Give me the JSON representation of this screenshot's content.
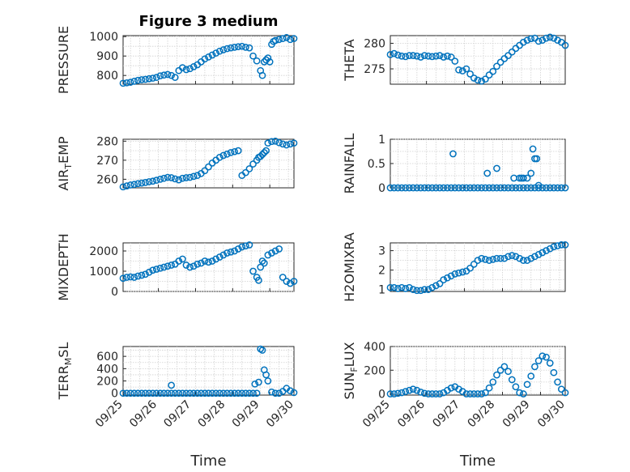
{
  "colors": {
    "marker": "#0072BD",
    "axis": "#262626",
    "grid": "#d0d0d0"
  },
  "chart_data": [
    {
      "type": "scatter",
      "title": "Figure 3 medium",
      "ylabel": "PRESSURE",
      "xlabel": "",
      "ylim": [
        755,
        1005
      ],
      "yticks": [
        800,
        900,
        1000
      ],
      "xlim": [
        0.3,
        4.9
      ],
      "grid": true,
      "xticklabels": [],
      "x": [
        0.3,
        0.4,
        0.5,
        0.6,
        0.7,
        0.8,
        0.9,
        1.0,
        1.1,
        1.2,
        1.3,
        1.4,
        1.5,
        1.6,
        1.7,
        1.8,
        1.9,
        2.0,
        2.1,
        2.2,
        2.3,
        2.4,
        2.5,
        2.6,
        2.7,
        2.8,
        2.9,
        3.0,
        3.1,
        3.2,
        3.3,
        3.4,
        3.5,
        3.6,
        3.7,
        3.8,
        3.9,
        4.0,
        4.05,
        4.1,
        4.15,
        4.2,
        4.25,
        4.3,
        4.35,
        4.4,
        4.5,
        4.6,
        4.7,
        4.8,
        4.9
      ],
      "y": [
        760,
        762,
        765,
        770,
        775,
        778,
        780,
        783,
        786,
        790,
        798,
        802,
        805,
        800,
        790,
        825,
        840,
        830,
        835,
        845,
        855,
        870,
        885,
        895,
        905,
        915,
        925,
        932,
        938,
        942,
        945,
        948,
        950,
        945,
        942,
        900,
        875,
        825,
        800,
        870,
        880,
        890,
        870,
        960,
        975,
        980,
        985,
        990,
        995,
        985,
        990
      ]
    },
    {
      "type": "scatter",
      "title": "",
      "ylabel": "THETA",
      "xlabel": "",
      "ylim": [
        272,
        281.5
      ],
      "yticks": [
        275,
        280
      ],
      "xlim": [
        0.3,
        4.9
      ],
      "grid": true,
      "xticklabels": [],
      "x": [
        0.3,
        0.4,
        0.5,
        0.6,
        0.7,
        0.8,
        0.9,
        1.0,
        1.1,
        1.2,
        1.3,
        1.4,
        1.5,
        1.6,
        1.7,
        1.8,
        1.9,
        2.0,
        2.1,
        2.2,
        2.3,
        2.4,
        2.5,
        2.6,
        2.7,
        2.8,
        2.9,
        3.0,
        3.1,
        3.2,
        3.3,
        3.4,
        3.5,
        3.6,
        3.7,
        3.8,
        3.9,
        4.0,
        4.1,
        4.2,
        4.3,
        4.4,
        4.5,
        4.6,
        4.7,
        4.8,
        4.9
      ],
      "y": [
        277.8,
        278.0,
        277.7,
        277.5,
        277.4,
        277.6,
        277.6,
        277.5,
        277.3,
        277.6,
        277.5,
        277.4,
        277.5,
        277.6,
        277.3,
        277.5,
        277.3,
        276.5,
        274.8,
        274.6,
        275.0,
        274.0,
        273.2,
        272.8,
        272.6,
        273.0,
        273.8,
        274.5,
        275.5,
        276.3,
        277.0,
        277.6,
        278.3,
        279.0,
        279.6,
        280.2,
        280.6,
        280.9,
        281.0,
        280.4,
        280.6,
        281.0,
        281.2,
        281.0,
        280.6,
        280.2,
        279.6
      ]
    },
    {
      "type": "scatter",
      "title": "",
      "ylabel": "AIR_TEMP",
      "xlabel": "",
      "ylim": [
        255.5,
        281
      ],
      "yticks": [
        260,
        270,
        280
      ],
      "xlim": [
        0.3,
        4.9
      ],
      "grid": true,
      "xticklabels": [],
      "x": [
        0.3,
        0.4,
        0.5,
        0.6,
        0.7,
        0.8,
        0.9,
        1.0,
        1.1,
        1.2,
        1.3,
        1.4,
        1.5,
        1.6,
        1.7,
        1.8,
        1.9,
        2.0,
        2.1,
        2.2,
        2.3,
        2.4,
        2.5,
        2.6,
        2.7,
        2.8,
        2.9,
        3.0,
        3.1,
        3.2,
        3.3,
        3.4,
        3.5,
        3.6,
        3.7,
        3.8,
        3.9,
        3.95,
        4.0,
        4.05,
        4.1,
        4.15,
        4.2,
        4.3,
        4.4,
        4.5,
        4.6,
        4.7,
        4.8,
        4.9
      ],
      "y": [
        256,
        256.5,
        257,
        257.3,
        257.7,
        258,
        258.3,
        258.7,
        259,
        259.5,
        260,
        260.5,
        261,
        260.8,
        260.2,
        259.7,
        260.5,
        260.8,
        261,
        261.5,
        262,
        263,
        264.5,
        266.5,
        268.5,
        270,
        271.5,
        272.5,
        273.2,
        274,
        274.5,
        275,
        262,
        263.5,
        265.5,
        268,
        270,
        271.5,
        272,
        273,
        274,
        275,
        279,
        279.8,
        280,
        279.2,
        278.5,
        278,
        278.5,
        279
      ]
    },
    {
      "type": "scatter",
      "title": "",
      "ylabel": "RAINFALL",
      "xlabel": "",
      "ylim": [
        0,
        1
      ],
      "yticks": [
        0,
        0.5,
        1
      ],
      "xlim": [
        0.3,
        4.9
      ],
      "grid": true,
      "xticklabels": [],
      "x": [
        0.3,
        0.4,
        0.5,
        0.6,
        0.7,
        0.8,
        0.9,
        1.0,
        1.1,
        1.2,
        1.3,
        1.4,
        1.5,
        1.6,
        1.7,
        1.8,
        1.9,
        2.0,
        2.1,
        2.2,
        2.3,
        2.4,
        2.5,
        2.6,
        2.7,
        2.8,
        2.9,
        3.0,
        3.1,
        3.2,
        3.3,
        3.4,
        3.5,
        3.6,
        3.7,
        3.8,
        3.9,
        4.0,
        4.1,
        4.2,
        4.3,
        4.4,
        4.5,
        4.6,
        4.7,
        4.8,
        4.9,
        1.95,
        2.85,
        3.1,
        3.55,
        3.7,
        3.8,
        3.9,
        4.0,
        4.05,
        4.1,
        4.15,
        4.2,
        3.75
      ],
      "y": [
        0,
        0,
        0,
        0,
        0,
        0,
        0,
        0,
        0,
        0,
        0,
        0,
        0,
        0,
        0,
        0,
        0,
        0,
        0,
        0,
        0,
        0,
        0,
        0,
        0,
        0,
        0,
        0,
        0,
        0,
        0,
        0,
        0,
        0,
        0,
        0,
        0,
        0,
        0,
        0,
        0,
        0,
        0,
        0,
        0,
        0,
        0,
        0.7,
        0.3,
        0.4,
        0.2,
        0.2,
        0.2,
        0.2,
        0.3,
        0.8,
        0.6,
        0.6,
        0.05,
        0.2
      ]
    },
    {
      "type": "scatter",
      "title": "",
      "ylabel": "MIXDEPTH",
      "xlabel": "",
      "ylim": [
        0,
        2400
      ],
      "yticks": [
        0,
        1000,
        2000
      ],
      "xlim": [
        0.3,
        4.9
      ],
      "grid": true,
      "xticklabels": [],
      "x": [
        0.3,
        0.4,
        0.5,
        0.6,
        0.7,
        0.8,
        0.9,
        1.0,
        1.1,
        1.2,
        1.3,
        1.4,
        1.5,
        1.6,
        1.7,
        1.8,
        1.9,
        2.0,
        2.1,
        2.2,
        2.3,
        2.4,
        2.5,
        2.6,
        2.7,
        2.8,
        2.9,
        3.0,
        3.1,
        3.2,
        3.3,
        3.4,
        3.5,
        3.6,
        3.7,
        3.8,
        3.9,
        3.95,
        4.0,
        4.05,
        4.1,
        4.2,
        4.3,
        4.4,
        4.5,
        4.6,
        4.7,
        4.8,
        4.9
      ],
      "y": [
        650,
        700,
        720,
        700,
        760,
        800,
        850,
        950,
        1050,
        1100,
        1150,
        1200,
        1250,
        1300,
        1350,
        1500,
        1600,
        1300,
        1200,
        1250,
        1350,
        1400,
        1500,
        1450,
        1500,
        1600,
        1700,
        1800,
        1900,
        1950,
        2000,
        2100,
        2200,
        2250,
        2300,
        1000,
        700,
        550,
        1200,
        1500,
        1400,
        1800,
        1900,
        2000,
        2100,
        700,
        500,
        400,
        500
      ]
    },
    {
      "type": "scatter",
      "title": "",
      "ylabel": "H2OMIXRA",
      "xlabel": "",
      "ylim": [
        0.9,
        3.4
      ],
      "yticks": [
        1,
        2,
        3
      ],
      "xlim": [
        0.3,
        4.9
      ],
      "grid": true,
      "xticklabels": [],
      "x": [
        0.3,
        0.4,
        0.5,
        0.6,
        0.7,
        0.8,
        0.9,
        1.0,
        1.1,
        1.2,
        1.3,
        1.4,
        1.5,
        1.6,
        1.7,
        1.8,
        1.9,
        2.0,
        2.1,
        2.2,
        2.3,
        2.4,
        2.5,
        2.6,
        2.7,
        2.8,
        2.9,
        3.0,
        3.1,
        3.2,
        3.3,
        3.4,
        3.5,
        3.6,
        3.7,
        3.8,
        3.9,
        4.0,
        4.1,
        4.2,
        4.3,
        4.4,
        4.5,
        4.6,
        4.7,
        4.8,
        4.9
      ],
      "y": [
        1.1,
        1.1,
        1.05,
        1.1,
        1.05,
        1.1,
        1.0,
        0.95,
        0.95,
        1.0,
        1.0,
        1.1,
        1.2,
        1.3,
        1.5,
        1.6,
        1.7,
        1.8,
        1.85,
        1.9,
        1.95,
        2.1,
        2.3,
        2.5,
        2.6,
        2.55,
        2.5,
        2.55,
        2.6,
        2.6,
        2.6,
        2.7,
        2.75,
        2.7,
        2.6,
        2.5,
        2.5,
        2.6,
        2.7,
        2.8,
        2.9,
        3.0,
        3.1,
        3.2,
        3.25,
        3.3,
        3.3
      ]
    },
    {
      "type": "scatter",
      "title": "",
      "ylabel": "TERR_MSL",
      "xlabel": "Time",
      "ylim": [
        -30,
        760
      ],
      "yticks": [
        0,
        200,
        400,
        600
      ],
      "xlim": [
        0.3,
        4.9
      ],
      "grid": true,
      "xticklabels": [
        "09/25",
        "09/26",
        "09/27",
        "09/28",
        "09/29",
        "09/30"
      ],
      "x": [
        0.3,
        0.4,
        0.5,
        0.6,
        0.7,
        0.8,
        0.9,
        1.0,
        1.1,
        1.2,
        1.3,
        1.4,
        1.5,
        1.6,
        1.7,
        1.8,
        1.9,
        2.0,
        2.1,
        2.2,
        2.3,
        2.4,
        2.5,
        2.6,
        2.7,
        2.8,
        2.9,
        3.0,
        3.1,
        3.2,
        3.3,
        3.4,
        3.5,
        3.6,
        3.7,
        3.8,
        3.9,
        1.6,
        3.85,
        3.95,
        4.0,
        4.05,
        4.1,
        4.15,
        4.2,
        4.3,
        4.4,
        4.5,
        4.6,
        4.7,
        4.8,
        4.9
      ],
      "y": [
        0,
        0,
        0,
        0,
        0,
        0,
        0,
        0,
        0,
        0,
        0,
        0,
        0,
        0,
        0,
        0,
        0,
        0,
        0,
        0,
        0,
        0,
        0,
        0,
        0,
        0,
        0,
        0,
        0,
        0,
        0,
        0,
        0,
        0,
        0,
        0,
        0,
        130,
        150,
        180,
        720,
        700,
        380,
        300,
        200,
        20,
        0,
        0,
        30,
        80,
        40,
        10
      ]
    },
    {
      "type": "scatter",
      "title": "",
      "ylabel": "SUN_FLUX",
      "xlabel": "Time",
      "ylim": [
        -10,
        400
      ],
      "yticks": [
        0,
        200,
        400
      ],
      "xlim": [
        0.3,
        4.9
      ],
      "grid": true,
      "xticklabels": [
        "09/25",
        "09/26",
        "09/27",
        "09/28",
        "09/29",
        "09/30"
      ],
      "x": [
        0.3,
        0.4,
        0.5,
        0.6,
        0.7,
        0.8,
        0.9,
        1.0,
        1.1,
        1.2,
        1.3,
        1.4,
        1.5,
        1.6,
        1.7,
        1.8,
        1.9,
        2.0,
        2.1,
        2.2,
        2.3,
        2.4,
        2.5,
        2.6,
        2.7,
        2.8,
        2.9,
        3.0,
        3.1,
        3.2,
        3.3,
        3.4,
        3.5,
        3.6,
        3.7,
        3.8,
        3.9,
        4.0,
        4.1,
        4.2,
        4.3,
        4.4,
        4.5,
        4.6,
        4.7,
        4.8,
        4.9
      ],
      "y": [
        0,
        0,
        5,
        10,
        20,
        30,
        40,
        30,
        15,
        5,
        0,
        0,
        0,
        0,
        10,
        30,
        50,
        60,
        40,
        20,
        0,
        0,
        0,
        0,
        0,
        10,
        50,
        100,
        160,
        200,
        230,
        190,
        120,
        60,
        10,
        0,
        80,
        150,
        230,
        280,
        320,
        310,
        260,
        180,
        100,
        40,
        10
      ]
    }
  ]
}
